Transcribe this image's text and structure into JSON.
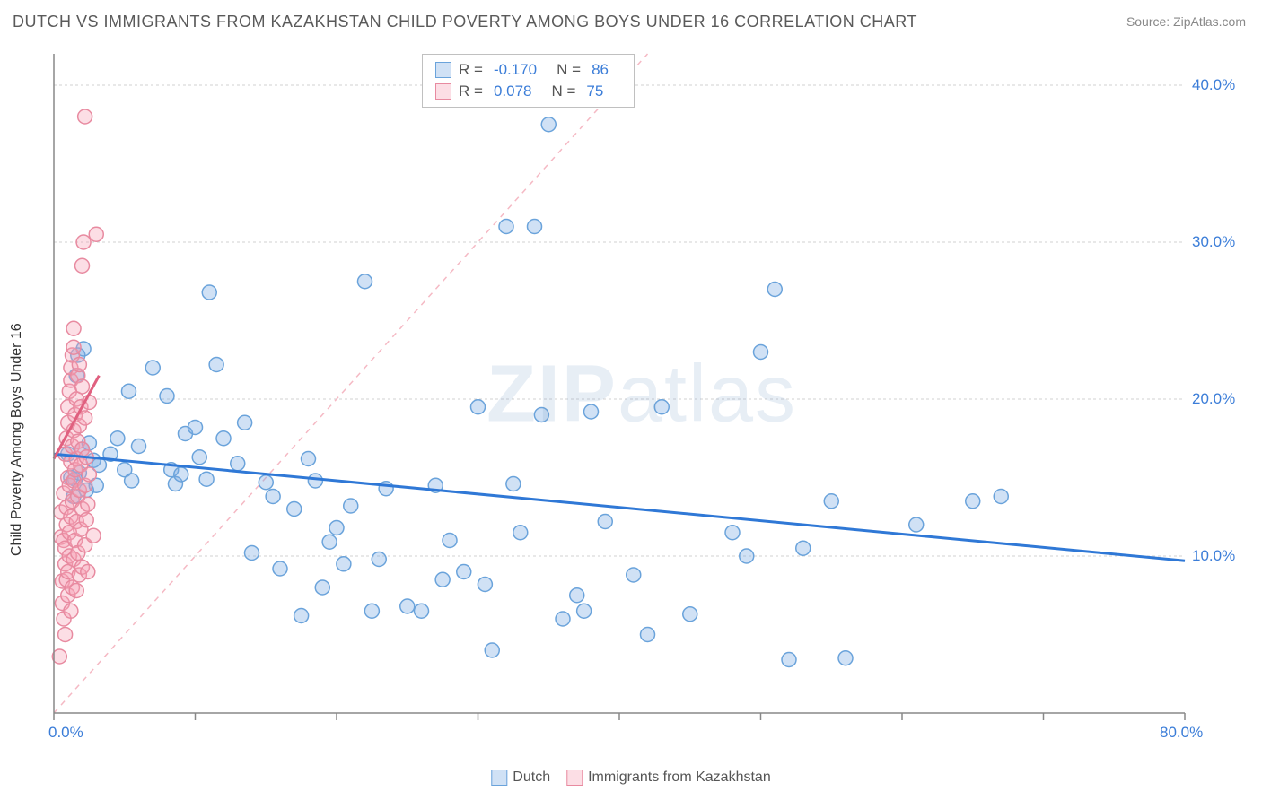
{
  "title": "DUTCH VS IMMIGRANTS FROM KAZAKHSTAN CHILD POVERTY AMONG BOYS UNDER 16 CORRELATION CHART",
  "source_label": "Source: ZipAtlas.com",
  "y_axis_label": "Child Poverty Among Boys Under 16",
  "watermark_prefix": "ZIP",
  "watermark_suffix": "atlas",
  "chart": {
    "type": "scatter",
    "xlim": [
      0,
      80
    ],
    "ylim": [
      0,
      42
    ],
    "x_tick_positions": [
      0,
      10,
      20,
      30,
      40,
      50,
      60,
      70,
      80
    ],
    "x_tick_visible_labels": {
      "0": "0.0%",
      "80": "80.0%"
    },
    "y_tick_positions": [
      10,
      20,
      30,
      40
    ],
    "y_tick_labels": [
      "10.0%",
      "20.0%",
      "30.0%",
      "40.0%"
    ],
    "grid_color": "#d0d0d0",
    "grid_dash": "3,3",
    "axis_color": "#888888",
    "background_color": "#ffffff",
    "x_label_color": "#3b7dd8",
    "y_label_color": "#3b7dd8",
    "marker_radius": 8,
    "marker_stroke_width": 1.5,
    "series": [
      {
        "name": "Dutch",
        "fill": "rgba(120,170,225,0.35)",
        "stroke": "#6aa3db",
        "points": [
          [
            1.0,
            16.5
          ],
          [
            1.2,
            15.0
          ],
          [
            1.4,
            13.8
          ],
          [
            1.5,
            14.9
          ],
          [
            1.6,
            21.5
          ],
          [
            1.7,
            22.8
          ],
          [
            1.8,
            15.3
          ],
          [
            2.0,
            16.8
          ],
          [
            2.1,
            23.2
          ],
          [
            2.3,
            14.2
          ],
          [
            2.5,
            17.2
          ],
          [
            2.8,
            16.1
          ],
          [
            3.0,
            14.5
          ],
          [
            3.2,
            15.8
          ],
          [
            4.0,
            16.5
          ],
          [
            4.5,
            17.5
          ],
          [
            5.0,
            15.5
          ],
          [
            5.3,
            20.5
          ],
          [
            5.5,
            14.8
          ],
          [
            6.0,
            17.0
          ],
          [
            7.0,
            22.0
          ],
          [
            8.0,
            20.2
          ],
          [
            8.3,
            15.5
          ],
          [
            8.6,
            14.6
          ],
          [
            9.0,
            15.2
          ],
          [
            9.3,
            17.8
          ],
          [
            10.0,
            18.2
          ],
          [
            10.3,
            16.3
          ],
          [
            10.8,
            14.9
          ],
          [
            11.0,
            26.8
          ],
          [
            11.5,
            22.2
          ],
          [
            12.0,
            17.5
          ],
          [
            13.0,
            15.9
          ],
          [
            13.5,
            18.5
          ],
          [
            14.0,
            10.2
          ],
          [
            15.0,
            14.7
          ],
          [
            15.5,
            13.8
          ],
          [
            16.0,
            9.2
          ],
          [
            17.0,
            13.0
          ],
          [
            17.5,
            6.2
          ],
          [
            18.0,
            16.2
          ],
          [
            18.5,
            14.8
          ],
          [
            19.0,
            8.0
          ],
          [
            19.5,
            10.9
          ],
          [
            20.0,
            11.8
          ],
          [
            20.5,
            9.5
          ],
          [
            21.0,
            13.2
          ],
          [
            22.0,
            27.5
          ],
          [
            22.5,
            6.5
          ],
          [
            23.0,
            9.8
          ],
          [
            23.5,
            14.3
          ],
          [
            25.0,
            6.8
          ],
          [
            26.0,
            6.5
          ],
          [
            27.0,
            14.5
          ],
          [
            27.5,
            8.5
          ],
          [
            28.0,
            11.0
          ],
          [
            29.0,
            9.0
          ],
          [
            30.0,
            19.5
          ],
          [
            30.5,
            8.2
          ],
          [
            31.0,
            4.0
          ],
          [
            32.0,
            31.0
          ],
          [
            32.5,
            14.6
          ],
          [
            33.0,
            11.5
          ],
          [
            34.0,
            31.0
          ],
          [
            34.5,
            19.0
          ],
          [
            35.0,
            37.5
          ],
          [
            36.0,
            6.0
          ],
          [
            37.0,
            7.5
          ],
          [
            37.5,
            6.5
          ],
          [
            38.0,
            19.2
          ],
          [
            39.0,
            12.2
          ],
          [
            41.0,
            8.8
          ],
          [
            42.0,
            5.0
          ],
          [
            43.0,
            19.5
          ],
          [
            45.0,
            6.3
          ],
          [
            48.0,
            11.5
          ],
          [
            49.0,
            10.0
          ],
          [
            50.0,
            23.0
          ],
          [
            51.0,
            27.0
          ],
          [
            52.0,
            3.4
          ],
          [
            53.0,
            10.5
          ],
          [
            55.0,
            13.5
          ],
          [
            56.0,
            3.5
          ],
          [
            61.0,
            12.0
          ],
          [
            65.0,
            13.5
          ],
          [
            67.0,
            13.8
          ]
        ],
        "trendline": {
          "y_at_x0": 16.5,
          "y_at_xmax": 9.7,
          "color": "#2f78d6",
          "width": 3
        },
        "identity_dash": {
          "x0": 0,
          "y0": 0,
          "x1": 42,
          "y1": 42,
          "color": "#f5b9c4",
          "width": 1.5,
          "dash": "6,6"
        }
      },
      {
        "name": "Immigrants from Kazakhstan",
        "fill": "rgba(245,160,180,0.35)",
        "stroke": "#e88aa0",
        "points": [
          [
            0.4,
            3.6
          ],
          [
            0.5,
            11.2
          ],
          [
            0.5,
            12.8
          ],
          [
            0.6,
            7.0
          ],
          [
            0.6,
            8.4
          ],
          [
            0.7,
            6.0
          ],
          [
            0.7,
            11.0
          ],
          [
            0.7,
            14.0
          ],
          [
            0.8,
            5.0
          ],
          [
            0.8,
            9.5
          ],
          [
            0.8,
            10.5
          ],
          [
            0.8,
            16.5
          ],
          [
            0.9,
            8.5
          ],
          [
            0.9,
            12.0
          ],
          [
            0.9,
            13.1
          ],
          [
            0.9,
            17.5
          ],
          [
            1.0,
            7.5
          ],
          [
            1.0,
            9.0
          ],
          [
            1.0,
            15.0
          ],
          [
            1.0,
            18.5
          ],
          [
            1.0,
            19.5
          ],
          [
            1.1,
            10.0
          ],
          [
            1.1,
            11.5
          ],
          [
            1.1,
            14.5
          ],
          [
            1.1,
            20.5
          ],
          [
            1.2,
            6.5
          ],
          [
            1.2,
            12.5
          ],
          [
            1.2,
            16.0
          ],
          [
            1.2,
            21.2
          ],
          [
            1.2,
            22.0
          ],
          [
            1.3,
            8.0
          ],
          [
            1.3,
            13.5
          ],
          [
            1.3,
            17.0
          ],
          [
            1.3,
            22.8
          ],
          [
            1.4,
            9.8
          ],
          [
            1.4,
            14.8
          ],
          [
            1.4,
            18.0
          ],
          [
            1.4,
            23.3
          ],
          [
            1.4,
            24.5
          ],
          [
            1.5,
            11.0
          ],
          [
            1.5,
            15.5
          ],
          [
            1.5,
            19.0
          ],
          [
            1.6,
            7.8
          ],
          [
            1.6,
            12.2
          ],
          [
            1.6,
            16.2
          ],
          [
            1.6,
            20.0
          ],
          [
            1.7,
            10.2
          ],
          [
            1.7,
            13.8
          ],
          [
            1.7,
            17.3
          ],
          [
            1.7,
            21.5
          ],
          [
            1.8,
            8.8
          ],
          [
            1.8,
            14.2
          ],
          [
            1.8,
            18.3
          ],
          [
            1.8,
            22.2
          ],
          [
            1.9,
            11.7
          ],
          [
            1.9,
            15.8
          ],
          [
            1.9,
            19.5
          ],
          [
            2.0,
            9.3
          ],
          [
            2.0,
            13.0
          ],
          [
            2.0,
            16.8
          ],
          [
            2.0,
            20.8
          ],
          [
            2.0,
            28.5
          ],
          [
            2.1,
            30.0
          ],
          [
            2.2,
            10.7
          ],
          [
            2.2,
            14.5
          ],
          [
            2.2,
            18.8
          ],
          [
            2.3,
            12.3
          ],
          [
            2.3,
            16.3
          ],
          [
            2.4,
            9.0
          ],
          [
            2.4,
            13.3
          ],
          [
            2.5,
            15.2
          ],
          [
            2.5,
            19.8
          ],
          [
            2.8,
            11.3
          ],
          [
            3.0,
            30.5
          ],
          [
            2.2,
            38.0
          ]
        ],
        "trendline": {
          "y_at_x0": 16.2,
          "y_at_xmax": 21.5,
          "x_end": 3.2,
          "color": "#e0607f",
          "width": 3
        }
      }
    ]
  },
  "stats_legend": {
    "rows": [
      {
        "swatch_fill": "rgba(120,170,225,0.35)",
        "swatch_stroke": "#6aa3db",
        "r_label": "R =",
        "r_value": "-0.170",
        "n_label": "N =",
        "n_value": "86"
      },
      {
        "swatch_fill": "rgba(245,160,180,0.35)",
        "swatch_stroke": "#e88aa0",
        "r_label": "R =",
        "r_value": "0.078",
        "n_label": "N =",
        "n_value": "75"
      }
    ]
  },
  "bottom_legend": {
    "items": [
      {
        "swatch_fill": "rgba(120,170,225,0.35)",
        "swatch_stroke": "#6aa3db",
        "label": "Dutch"
      },
      {
        "swatch_fill": "rgba(245,160,180,0.35)",
        "swatch_stroke": "#e88aa0",
        "label": "Immigrants from Kazakhstan"
      }
    ]
  }
}
